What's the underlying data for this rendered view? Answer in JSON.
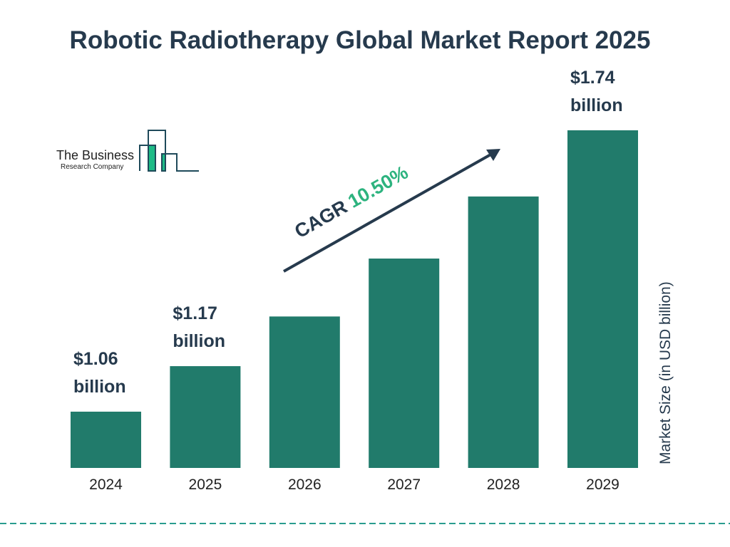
{
  "chart_data": {
    "type": "bar",
    "title": "Robotic Radiotherapy Global Market Report 2025",
    "ylabel": "Market Size (in USD billion)",
    "xlabel": "",
    "categories": [
      "2024",
      "2025",
      "2026",
      "2027",
      "2028",
      "2029"
    ],
    "values": [
      1.06,
      1.17,
      1.29,
      1.43,
      1.58,
      1.74
    ],
    "data_labels": [
      {
        "index": 0,
        "line1": "$1.06",
        "line2": "billion"
      },
      {
        "index": 1,
        "line1": "$1.17",
        "line2": "billion"
      },
      {
        "index": 5,
        "line1": "$1.74",
        "line2": "billion"
      }
    ],
    "annotation": {
      "prefix": "CAGR",
      "value": "10.50%"
    },
    "grid": false,
    "legend": "none"
  },
  "logo": {
    "line1": "The Business",
    "line2": "Research Company"
  },
  "colors": {
    "bar": "#217b6b",
    "title": "#263a4d",
    "cagr": "#2db37f",
    "divider": "#2a9d8f",
    "logo_green": "#1dbb86"
  }
}
